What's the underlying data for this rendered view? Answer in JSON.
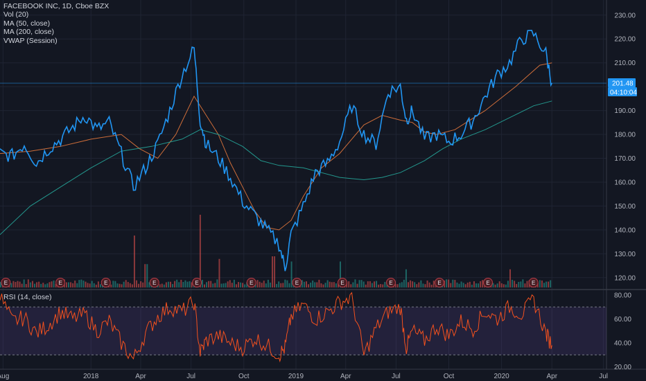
{
  "legend": {
    "title": "FACEBOOK INC, 1D, Cboe BZX",
    "vol": "Vol (20)",
    "ma50": "MA (50, close)",
    "ma200": "MA (200, close)",
    "vwap": "VWAP (Session)"
  },
  "rsi_label": "RSI (14, close)",
  "price_tag": "201.48",
  "time_tag": "04:10:04",
  "earnings_marker": "E",
  "colors": {
    "background": "#131722",
    "price": "#2196f3",
    "ma50": "#e2773c",
    "ma200": "#26a69a",
    "rsi": "#f4511e",
    "rsi_band": "#7e57c2",
    "vol_up": "#26a69a",
    "vol_down": "#ef5350",
    "grid": "#1f2433",
    "tag": "#2196f3"
  },
  "chart_data": [
    {
      "type": "line",
      "title": "FACEBOOK INC, 1D, Cboe BZX",
      "x_axis": [
        "Aug",
        "2018",
        "Apr",
        "Jul",
        "Oct",
        "2019",
        "Apr",
        "Jul",
        "Oct",
        "2020",
        "Apr",
        "Jul"
      ],
      "y_ticks": [
        120,
        130,
        140,
        150,
        160,
        170,
        180,
        190,
        200,
        210,
        220,
        230
      ],
      "ylim": [
        115,
        234
      ],
      "last_price": 201.48,
      "grid": true,
      "series": [
        {
          "name": "FACEBOOK INC",
          "kind": "close",
          "x": [
            0,
            0.02,
            0.04,
            0.06,
            0.08,
            0.1,
            0.12,
            0.14,
            0.16,
            0.18,
            0.2,
            0.22,
            0.24,
            0.26,
            0.28,
            0.3,
            0.32,
            0.33,
            0.34,
            0.36,
            0.38,
            0.4,
            0.42,
            0.44,
            0.46,
            0.47,
            0.48,
            0.5,
            0.52,
            0.54,
            0.56,
            0.58,
            0.6,
            0.62,
            0.64,
            0.66,
            0.67,
            0.68,
            0.7,
            0.72,
            0.74,
            0.76,
            0.78,
            0.8,
            0.82,
            0.84,
            0.86,
            0.88,
            0.9,
            0.91
          ],
          "values": [
            172,
            171,
            176,
            168,
            174,
            178,
            183,
            188,
            182,
            185,
            172,
            158,
            166,
            176,
            190,
            205,
            216,
            186,
            176,
            170,
            162,
            152,
            146,
            140,
            134,
            124,
            138,
            150,
            164,
            168,
            177,
            192,
            180,
            176,
            198,
            200,
            186,
            190,
            178,
            180,
            177,
            180,
            186,
            196,
            205,
            210,
            220,
            222,
            214,
            201.5
          ]
        },
        {
          "name": "MA (50, close)",
          "kind": "ma50",
          "x": [
            0,
            0.05,
            0.1,
            0.15,
            0.2,
            0.23,
            0.26,
            0.29,
            0.32,
            0.34,
            0.36,
            0.38,
            0.4,
            0.42,
            0.44,
            0.46,
            0.48,
            0.5,
            0.53,
            0.56,
            0.58,
            0.6,
            0.63,
            0.66,
            0.68,
            0.7,
            0.72,
            0.75,
            0.8,
            0.85,
            0.89,
            0.91
          ],
          "values": [
            172,
            173,
            175,
            178,
            180,
            174,
            170,
            180,
            196,
            188,
            180,
            168,
            158,
            148,
            141,
            140,
            144,
            154,
            166,
            172,
            178,
            184,
            188,
            186,
            185,
            181,
            180,
            182,
            190,
            200,
            209,
            210
          ]
        },
        {
          "name": "MA (200, close)",
          "kind": "ma200",
          "x": [
            0,
            0.05,
            0.1,
            0.15,
            0.2,
            0.25,
            0.3,
            0.33,
            0.36,
            0.4,
            0.43,
            0.46,
            0.5,
            0.53,
            0.56,
            0.6,
            0.63,
            0.66,
            0.7,
            0.73,
            0.76,
            0.8,
            0.84,
            0.88,
            0.91
          ],
          "values": [
            138,
            150,
            158,
            166,
            173,
            175,
            178,
            182,
            180,
            175,
            169,
            167,
            166,
            164,
            162,
            161,
            162,
            164,
            169,
            174,
            178,
            182,
            187,
            192,
            194
          ]
        }
      ]
    },
    {
      "type": "line",
      "title": "RSI (14, close)",
      "y_ticks": [
        20,
        40,
        60,
        80
      ],
      "ylim": [
        18,
        84
      ],
      "bands": [
        30,
        70
      ],
      "series": [
        {
          "name": "RSI (14, close)",
          "x": [
            0,
            0.02,
            0.04,
            0.06,
            0.08,
            0.1,
            0.12,
            0.14,
            0.16,
            0.18,
            0.2,
            0.22,
            0.24,
            0.26,
            0.28,
            0.3,
            0.32,
            0.33,
            0.34,
            0.36,
            0.38,
            0.4,
            0.42,
            0.44,
            0.46,
            0.47,
            0.48,
            0.5,
            0.52,
            0.54,
            0.56,
            0.58,
            0.6,
            0.62,
            0.64,
            0.66,
            0.67,
            0.68,
            0.7,
            0.72,
            0.74,
            0.76,
            0.78,
            0.8,
            0.82,
            0.84,
            0.86,
            0.88,
            0.9,
            0.91
          ],
          "values": [
            79,
            58,
            61,
            48,
            55,
            66,
            60,
            64,
            50,
            58,
            40,
            26,
            48,
            62,
            70,
            66,
            74,
            32,
            42,
            46,
            40,
            36,
            44,
            38,
            30,
            36,
            62,
            72,
            60,
            66,
            74,
            78,
            30,
            52,
            66,
            70,
            36,
            50,
            42,
            54,
            46,
            58,
            52,
            66,
            60,
            70,
            64,
            76,
            48,
            38
          ]
        }
      ]
    },
    {
      "type": "bar",
      "title": "Vol (20)",
      "note": "volume bars (no axis scale shown)",
      "spikes": [
        {
          "x": 0.22,
          "value": 1.0
        },
        {
          "x": 0.24,
          "value": 0.45
        },
        {
          "x": 0.33,
          "value": 1.4
        },
        {
          "x": 0.36,
          "value": 0.55
        },
        {
          "x": 0.45,
          "value": 0.6
        },
        {
          "x": 0.48,
          "value": 0.5
        },
        {
          "x": 0.56,
          "value": 0.5
        },
        {
          "x": 0.67,
          "value": 0.35
        },
        {
          "x": 0.84,
          "value": 0.35
        }
      ]
    }
  ],
  "earnings": {
    "label": "E",
    "x": [
      0.005,
      0.095,
      0.17,
      0.25,
      0.32,
      0.41,
      0.485,
      0.56,
      0.64,
      0.72,
      0.8,
      0.875
    ]
  }
}
